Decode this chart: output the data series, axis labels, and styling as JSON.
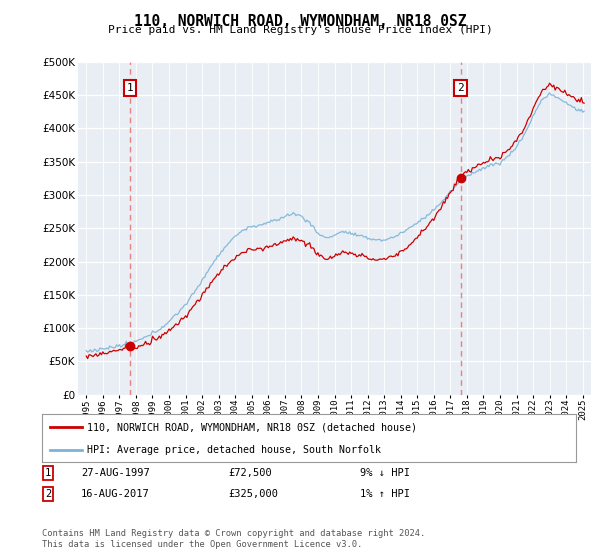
{
  "title": "110, NORWICH ROAD, WYMONDHAM, NR18 0SZ",
  "subtitle": "Price paid vs. HM Land Registry's House Price Index (HPI)",
  "legend_line1": "110, NORWICH ROAD, WYMONDHAM, NR18 0SZ (detached house)",
  "legend_line2": "HPI: Average price, detached house, South Norfolk",
  "annotation1": {
    "num": "1",
    "date": "27-AUG-1997",
    "price": "£72,500",
    "pct": "9% ↓ HPI"
  },
  "annotation2": {
    "num": "2",
    "date": "16-AUG-2017",
    "price": "£325,000",
    "pct": "1% ↑ HPI"
  },
  "footnote": "Contains HM Land Registry data © Crown copyright and database right 2024.\nThis data is licensed under the Open Government Licence v3.0.",
  "sale1_year": 1997.65,
  "sale1_price": 72500,
  "sale2_year": 2017.62,
  "sale2_price": 325000,
  "hpi_color": "#7ab4d8",
  "price_color": "#cc0000",
  "dashed_color": "#e87070",
  "background_plot": "#e8eef4",
  "ylim": [
    0,
    500000
  ],
  "xlim_start": 1994.5,
  "xlim_end": 2025.5
}
